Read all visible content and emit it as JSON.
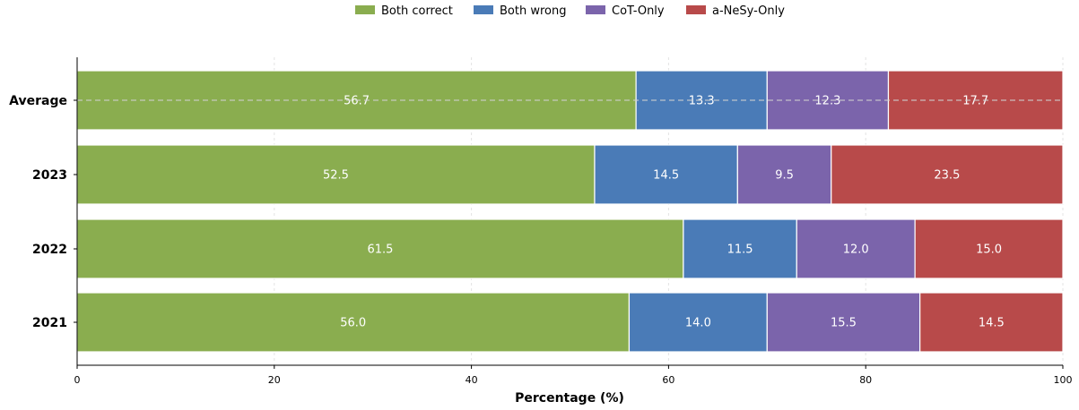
{
  "chart_data": {
    "type": "bar",
    "orientation": "horizontal",
    "stacked": true,
    "categories": [
      "Average",
      "2023",
      "2022",
      "2021"
    ],
    "series": [
      {
        "name": "Both correct",
        "color": "#8aad4f",
        "values": [
          56.7,
          52.5,
          61.5,
          56.0
        ]
      },
      {
        "name": "Both wrong",
        "color": "#4a7bb7",
        "values": [
          13.3,
          14.5,
          11.5,
          14.0
        ]
      },
      {
        "name": "CoT-Only",
        "color": "#7b64ab",
        "values": [
          12.3,
          9.5,
          12.0,
          15.5
        ]
      },
      {
        "name": "a-NeSy-Only",
        "color": "#b84a4a",
        "values": [
          17.7,
          23.5,
          15.0,
          14.5
        ]
      }
    ],
    "xlabel": "Percentage (%)",
    "ylabel": "",
    "xlim": [
      0,
      100
    ],
    "xticks": [
      0,
      20,
      40,
      60,
      80,
      100
    ],
    "grid": true,
    "legend_position": "top-center",
    "average_row_dashed_line": true
  }
}
